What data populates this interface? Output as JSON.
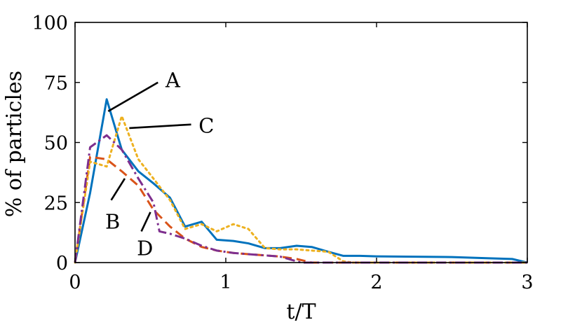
{
  "chart_data": {
    "type": "line",
    "xlabel": "t/T",
    "ylabel": "% of particles",
    "xlim": [
      0,
      3
    ],
    "ylim": [
      0,
      100
    ],
    "xticks": [
      "0",
      "1",
      "2",
      "3"
    ],
    "yticks": [
      "0",
      "25",
      "50",
      "75",
      "100"
    ],
    "grid": false,
    "series": [
      {
        "name": "A",
        "color": "#0072BD",
        "style": "solid",
        "x": [
          0,
          0.1,
          0.21,
          0.31,
          0.42,
          0.52,
          0.63,
          0.73,
          0.84,
          0.94,
          1.05,
          1.15,
          1.26,
          1.36,
          1.47,
          1.57,
          1.68,
          1.78,
          1.89,
          2.0,
          2.5,
          2.75,
          2.9,
          3.0
        ],
        "y": [
          0,
          29,
          68,
          47,
          38,
          33,
          27,
          15,
          17,
          9.5,
          9,
          8,
          6,
          6,
          7,
          6.5,
          4.5,
          2.8,
          2.8,
          2.6,
          2.3,
          1.8,
          1.5,
          0
        ]
      },
      {
        "name": "B",
        "color": "#D95319",
        "style": "dashed",
        "x": [
          0,
          0.1,
          0.21,
          0.31,
          0.42,
          0.52,
          0.63,
          0.73,
          0.84,
          0.94,
          1.05,
          1.15,
          1.26,
          1.36,
          1.47,
          1.57,
          2.0,
          3.0
        ],
        "y": [
          0,
          44,
          43,
          38,
          32,
          22,
          15,
          10,
          6.5,
          5,
          4,
          3.5,
          3,
          2.5,
          1.5,
          0,
          0,
          0
        ]
      },
      {
        "name": "C",
        "color": "#EDB120",
        "style": "dotted",
        "x": [
          0,
          0.1,
          0.21,
          0.31,
          0.42,
          0.52,
          0.63,
          0.73,
          0.84,
          0.94,
          1.05,
          1.15,
          1.26,
          1.36,
          1.47,
          1.57,
          1.68,
          1.78,
          1.85,
          2.0,
          3.0
        ],
        "y": [
          0,
          42,
          40,
          61,
          43,
          35,
          26,
          14,
          16,
          13,
          16,
          14,
          6,
          5.5,
          5.5,
          5,
          4.5,
          0.5,
          0,
          0,
          0
        ]
      },
      {
        "name": "D",
        "color": "#7E2F8E",
        "style": "dashdot",
        "x": [
          0,
          0.1,
          0.21,
          0.31,
          0.42,
          0.52,
          0.56,
          0.63,
          0.73,
          0.84,
          0.94,
          1.05,
          1.15,
          1.26,
          1.36,
          1.5,
          2.0,
          3.0
        ],
        "y": [
          0,
          48,
          53,
          47,
          35,
          25,
          13,
          12,
          10,
          7,
          5,
          4,
          3.5,
          3,
          2.5,
          0,
          0,
          0
        ]
      }
    ],
    "annotations": [
      {
        "text": "A",
        "series": "A",
        "point": [
          0.22,
          63
        ],
        "line_end": [
          0.55,
          75
        ],
        "label_at": [
          0.6,
          76
        ]
      },
      {
        "text": "C",
        "series": "C",
        "point": [
          0.36,
          56
        ],
        "line_end": [
          0.77,
          57.5
        ],
        "label_at": [
          0.82,
          57
        ]
      },
      {
        "text": "B",
        "series": "B",
        "point": [
          0.33,
          35
        ],
        "line_end": [
          0.24,
          26
        ],
        "label_at": [
          0.2,
          17
        ]
      },
      {
        "text": "D",
        "series": "D",
        "point": [
          0.5,
          21
        ],
        "line_end": [
          0.44,
          13
        ],
        "label_at": [
          0.41,
          6
        ]
      }
    ]
  }
}
